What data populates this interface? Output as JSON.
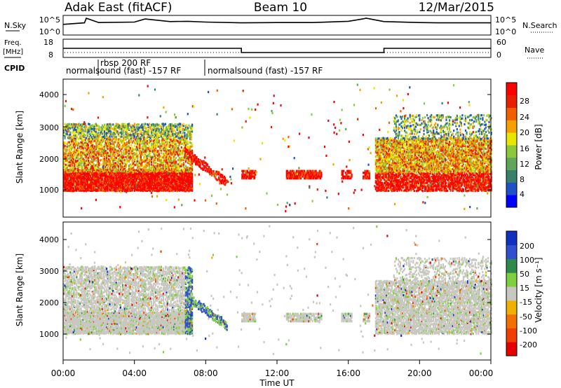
{
  "header": {
    "station": "Adak East (fitACF)",
    "beam": "Beam 10",
    "date": "12/Mar/2015"
  },
  "nsky_panel": {
    "label": "N.Sky",
    "right_label": "N.Search",
    "ticks": [
      "10^5",
      "10^0"
    ],
    "right_ticks": [
      "10^5",
      "10^0"
    ]
  },
  "freq_panel": {
    "label_line1": "Freq.",
    "label_line2": "[MHz]",
    "ticks": [
      "18",
      "8"
    ],
    "right_label": "Nave",
    "right_ticks": [
      "60",
      "0"
    ]
  },
  "cpid": {
    "label": "CPID",
    "segments": [
      "normalsound (fast) -157 RF",
      "rbsp 200 RF",
      "normalsound (fast) -157 RF"
    ]
  },
  "power_panel": {
    "ylabel": "Slant Range [km]",
    "yticks": [
      "4000",
      "3000",
      "2000",
      "1000"
    ],
    "colorbar_label": "Power [dB]",
    "colorbar_ticks": [
      "28",
      "24",
      "20",
      "16",
      "12",
      "8",
      "4"
    ]
  },
  "velocity_panel": {
    "ylabel": "Slant Range [km]",
    "yticks": [
      "4000",
      "3000",
      "2000",
      "1000"
    ],
    "colorbar_label": "Velocity [m s⁻¹]",
    "colorbar_ticks": [
      "200",
      "100",
      "50",
      "15",
      "-15",
      "-50",
      "-100",
      "-200"
    ]
  },
  "xaxis": {
    "label": "Time UT",
    "ticks": [
      "00:00",
      "04:00",
      "08:00",
      "12:00",
      "16:00",
      "20:00",
      "00:00"
    ]
  },
  "colors": {
    "power_scale": [
      "#0000ff",
      "#2050c8",
      "#3a7f6a",
      "#5fa55a",
      "#8dc83c",
      "#e6e600",
      "#f5a000",
      "#f06000",
      "#e62000",
      "#ff0000"
    ],
    "velocity_scale": [
      "#1030c0",
      "#3050d0",
      "#2f8a4a",
      "#7fcf3f",
      "#c8c8c0",
      "#f0b000",
      "#f07000",
      "#f04000",
      "#e60000"
    ]
  },
  "chart_data": [
    {
      "type": "line",
      "panel": "N.Sky",
      "x": [
        0,
        1.2,
        1.3,
        2,
        4,
        4.6,
        6,
        7,
        8,
        10,
        12,
        14,
        16,
        16.8,
        17,
        18,
        20,
        21,
        24
      ],
      "y": [
        0.6,
        0.7,
        1.0,
        0.72,
        0.75,
        0.95,
        0.78,
        0.8,
        0.75,
        0.7,
        0.72,
        0.72,
        0.8,
        0.95,
        1.0,
        0.78,
        0.72,
        0.7,
        0.7
      ],
      "xlim": [
        0,
        24
      ]
    },
    {
      "type": "line",
      "panel": "Freq",
      "x": [
        0,
        10,
        10,
        18,
        18,
        24
      ],
      "y": [
        13,
        13,
        10.5,
        10.5,
        13,
        13
      ],
      "xlim": [
        0,
        24
      ],
      "ylim": [
        8,
        18
      ]
    },
    {
      "type": "heatmap",
      "panel": "Power",
      "xlim": [
        0,
        24
      ],
      "ylim": [
        0,
        4500
      ],
      "clim": [
        0,
        30
      ]
    },
    {
      "type": "heatmap",
      "panel": "Velocity",
      "xlim": [
        0,
        24
      ],
      "ylim": [
        0,
        4500
      ],
      "clim": [
        -250,
        250
      ]
    }
  ]
}
